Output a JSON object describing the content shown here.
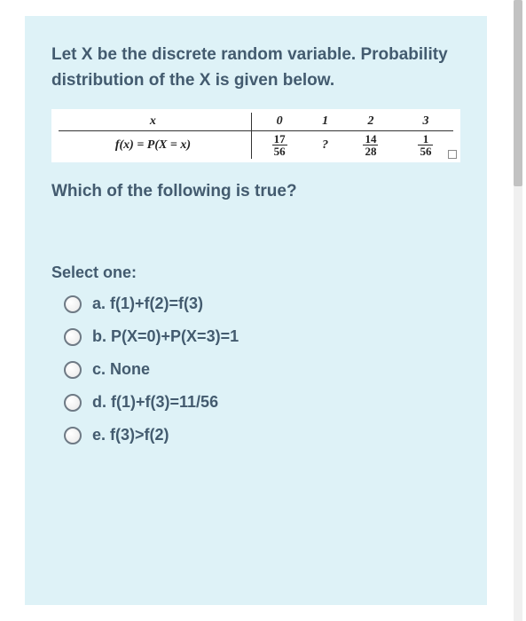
{
  "card": {
    "background": "#def2f7",
    "text_color": "#435b6f"
  },
  "question": {
    "intro": "Let X be the discrete random variable. Probability distribution of the X is given below.",
    "which": "Which of the following is ",
    "which_bold": "true",
    "which_tail": "?"
  },
  "table": {
    "row_header_x": "x",
    "row_header_fx": "f(x) = P(X = x)",
    "cols": [
      "0",
      "1",
      "2",
      "3"
    ],
    "vals": [
      {
        "type": "frac",
        "num": "17",
        "den": "56"
      },
      {
        "type": "text",
        "text": "?"
      },
      {
        "type": "frac",
        "num": "14",
        "den": "28"
      },
      {
        "type": "frac",
        "num": "1",
        "den": "56"
      }
    ]
  },
  "select": {
    "label": "Select one:",
    "options": [
      {
        "letter": "a.",
        "text": "f(1)+f(2)=f(3)"
      },
      {
        "letter": "b.",
        "text": "P(X=0)+P(X=3)=1"
      },
      {
        "letter": "c.",
        "text": "None"
      },
      {
        "letter": "d.",
        "text": "f(1)+f(3)=11/56"
      },
      {
        "letter": "e.",
        "text": "f(3)>f(2)"
      }
    ]
  },
  "scrollbar": {
    "thumb_color": "#c2c2c2",
    "track_color": "#f0f0f0"
  }
}
